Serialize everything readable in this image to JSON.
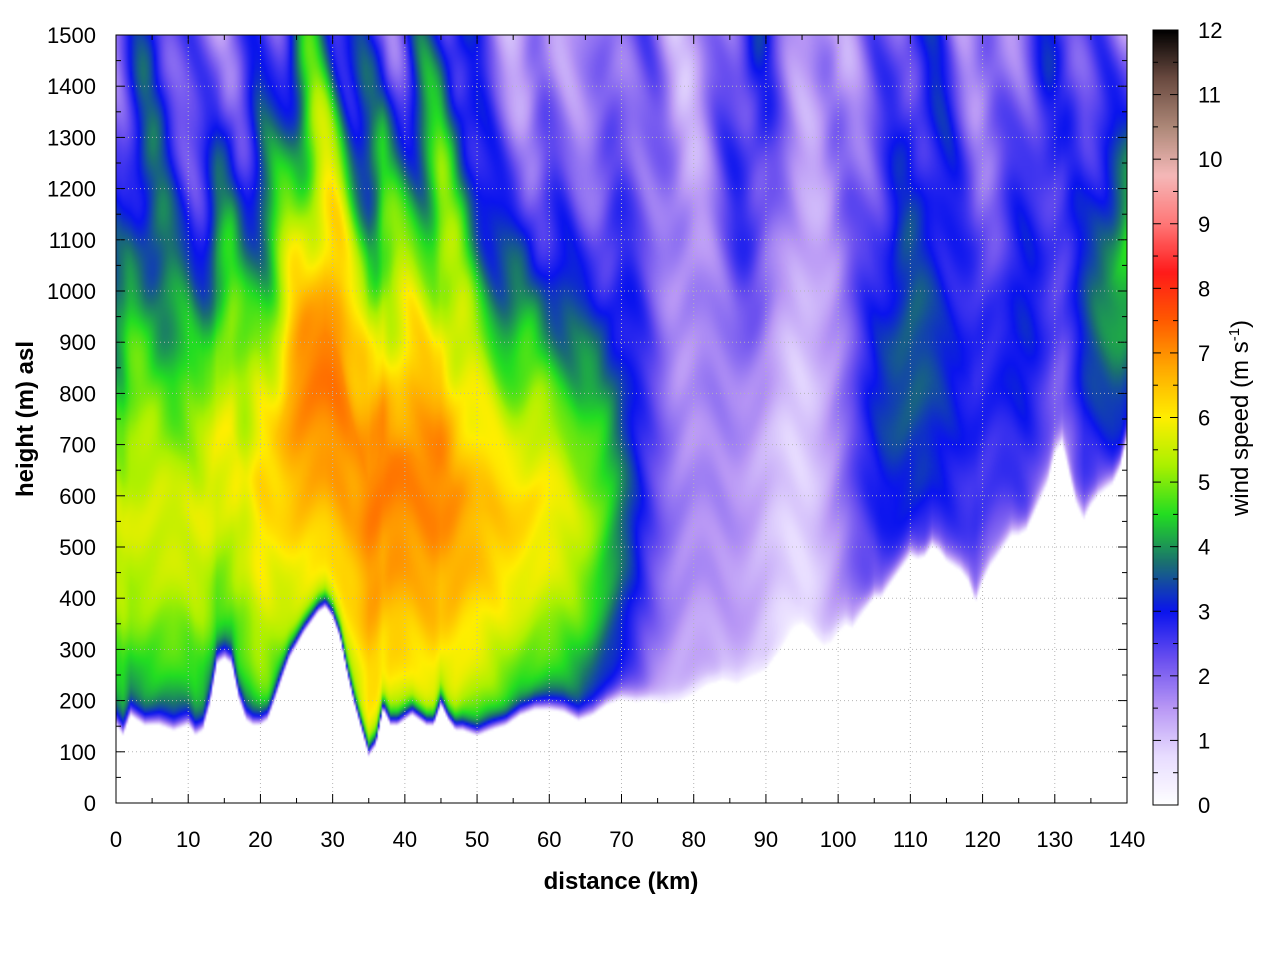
{
  "chart_data": {
    "type": "heatmap",
    "title": "",
    "xlabel": "distance (km)",
    "ylabel": "height (m) asl",
    "colorbar_label_main": "wind speed (m s",
    "colorbar_label_sup": "-1",
    "colorbar_label_close": ")",
    "xlim": [
      0,
      140
    ],
    "ylim": [
      0,
      1500
    ],
    "clim": [
      0,
      12
    ],
    "x_ticks": [
      "0",
      "10",
      "20",
      "30",
      "40",
      "50",
      "60",
      "70",
      "80",
      "90",
      "100",
      "110",
      "120",
      "130",
      "140"
    ],
    "y_ticks": [
      "0",
      "100",
      "200",
      "300",
      "400",
      "500",
      "600",
      "700",
      "800",
      "900",
      "1000",
      "1100",
      "1200",
      "1300",
      "1400",
      "1500"
    ],
    "c_ticks": [
      "0",
      "1",
      "2",
      "3",
      "4",
      "5",
      "6",
      "7",
      "8",
      "9",
      "10",
      "11",
      "12"
    ],
    "grid": true,
    "colormap": [
      "#ffffff",
      "#e8ddff",
      "#b998f5",
      "#6b50ef",
      "#0a14ee",
      "#1a7070",
      "#22dd22",
      "#aaf000",
      "#ffee00",
      "#ffaa00",
      "#ff5a00",
      "#ff1a1a",
      "#ff7777",
      "#f5b8b8",
      "#ad8878",
      "#6a4a40",
      "#000000"
    ],
    "terrain_profile": {
      "x": [
        0,
        1,
        2,
        3,
        4,
        6,
        8,
        10,
        11,
        12,
        13,
        14,
        15,
        16,
        17,
        18,
        19,
        20,
        21,
        22,
        24,
        26,
        28,
        29,
        30,
        31,
        32,
        33,
        34,
        35,
        36,
        37,
        38,
        39,
        40,
        41,
        42,
        43,
        44,
        45,
        46,
        47,
        48,
        50,
        52,
        54,
        56,
        58,
        60,
        62,
        64,
        66,
        68,
        70,
        72,
        74,
        76,
        78,
        80,
        82,
        84,
        86,
        88,
        90,
        92,
        94,
        95,
        96,
        97,
        98,
        99,
        100,
        101,
        102,
        103,
        104,
        105,
        106,
        107,
        108,
        109,
        110,
        111,
        112,
        113,
        114,
        115,
        116,
        117,
        118,
        119,
        120,
        121,
        122,
        123,
        124,
        125,
        126,
        127,
        128,
        129,
        130,
        131,
        132,
        133,
        134,
        135,
        136,
        137,
        138,
        139,
        140
      ],
      "height": [
        150,
        130,
        170,
        160,
        150,
        150,
        140,
        150,
        130,
        140,
        190,
        270,
        280,
        270,
        200,
        160,
        150,
        150,
        160,
        200,
        280,
        330,
        370,
        380,
        360,
        320,
        250,
        190,
        140,
        90,
        110,
        180,
        150,
        150,
        160,
        170,
        160,
        150,
        150,
        190,
        160,
        140,
        140,
        130,
        140,
        150,
        170,
        180,
        180,
        175,
        160,
        170,
        190,
        200,
        195,
        200,
        195,
        200,
        210,
        230,
        240,
        230,
        245,
        260,
        300,
        340,
        350,
        340,
        320,
        305,
        310,
        330,
        345,
        340,
        360,
        380,
        400,
        400,
        420,
        440,
        460,
        480,
        475,
        480,
        500,
        490,
        470,
        460,
        450,
        430,
        390,
        430,
        460,
        480,
        500,
        520,
        520,
        530,
        560,
        590,
        620,
        680,
        700,
        640,
        580,
        550,
        580,
        600,
        610,
        620,
        650,
        710
      ]
    }
  }
}
